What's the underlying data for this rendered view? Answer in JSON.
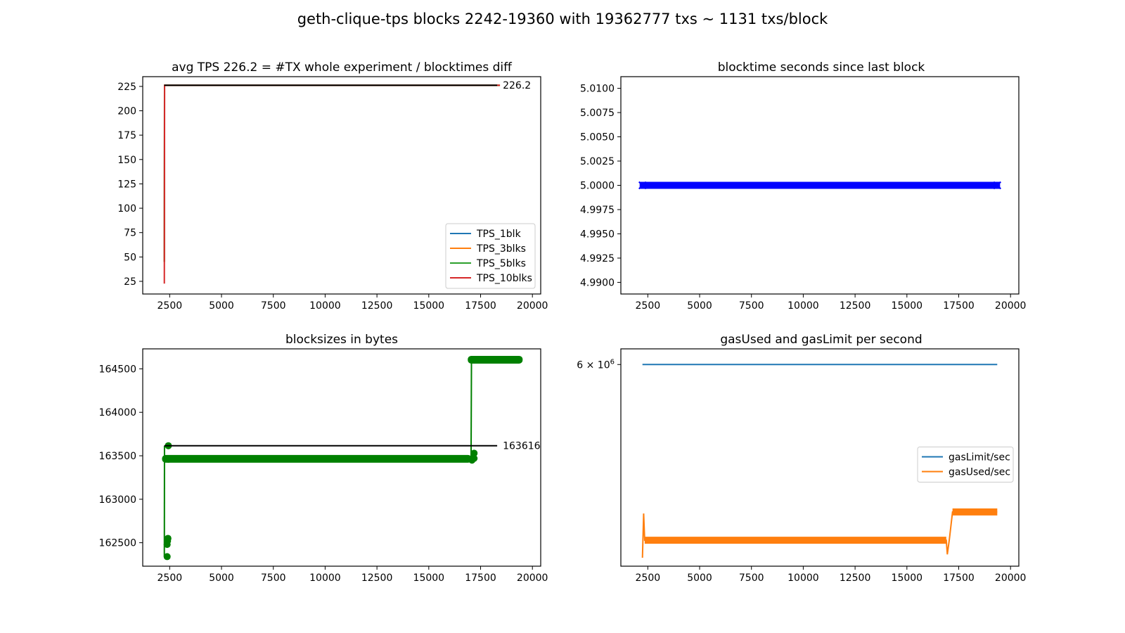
{
  "figure": {
    "title": "geth-clique-tps blocks 2242-19360 with 19362777 txs ~ 1131 txs/block"
  },
  "chart_data": [
    {
      "id": "tps",
      "type": "line",
      "title": "avg TPS 226.2 = #TX whole experiment / blocktimes diff",
      "xlim": [
        1200,
        20400
      ],
      "ylim": [
        12,
        235
      ],
      "xticks": [
        2500,
        5000,
        7500,
        10000,
        12500,
        15000,
        17500,
        20000
      ],
      "yticks": [
        25,
        50,
        75,
        100,
        125,
        150,
        175,
        200,
        225
      ],
      "ytick_labels": [
        "25",
        "50",
        "75",
        "100",
        "125",
        "150",
        "175",
        "200",
        "225"
      ],
      "legend": {
        "position": "lower-right"
      },
      "series": [
        {
          "name": "TPS_1blk",
          "color": "#1f77b4",
          "points": [
            [
              2242,
              45
            ],
            [
              2250,
              226.2
            ],
            [
              19360,
              226.2
            ]
          ]
        },
        {
          "name": "TPS_3blks",
          "color": "#ff7f0e",
          "points": [
            [
              2242,
              45
            ],
            [
              2250,
              226.2
            ],
            [
              19360,
              226.2
            ]
          ]
        },
        {
          "name": "TPS_5blks",
          "color": "#2ca02c",
          "points": [
            [
              2242,
              45
            ],
            [
              2250,
              226.2
            ],
            [
              19360,
              226.2
            ]
          ]
        },
        {
          "name": "TPS_10blks",
          "color": "#d62728",
          "points": [
            [
              2242,
              22.6
            ],
            [
              2255,
              226.2
            ],
            [
              19360,
              226.2
            ]
          ]
        }
      ],
      "hline": {
        "y": 226.2,
        "x_from": 2242,
        "x_to": 18300,
        "label": "226.2",
        "color": "#000000"
      }
    },
    {
      "id": "blocktime",
      "type": "scatter",
      "title": "blocktime seconds since last block",
      "xlim": [
        1200,
        20400
      ],
      "ylim": [
        4.9888,
        5.0112
      ],
      "xticks": [
        2500,
        5000,
        7500,
        10000,
        12500,
        15000,
        17500,
        20000
      ],
      "yticks": [
        4.99,
        4.9925,
        4.995,
        4.9975,
        5.0,
        5.0025,
        5.005,
        5.0075,
        5.01
      ],
      "ytick_labels": [
        "4.9900",
        "4.9925",
        "4.9950",
        "4.9975",
        "5.0000",
        "5.0025",
        "5.0050",
        "5.0075",
        "5.0100"
      ],
      "series": [
        {
          "name": "blocktime",
          "color": "#0000ff",
          "marker": "x",
          "x_from": 2242,
          "x_to": 19360,
          "y": 5.0
        }
      ]
    },
    {
      "id": "blocksize",
      "type": "line",
      "title": "blocksizes in bytes",
      "xlim": [
        1200,
        20400
      ],
      "ylim": [
        162230,
        164730
      ],
      "xticks": [
        2500,
        5000,
        7500,
        10000,
        12500,
        15000,
        17500,
        20000
      ],
      "yticks": [
        162500,
        163000,
        163500,
        164000,
        164500
      ],
      "ytick_labels": [
        "162500",
        "163000",
        "163500",
        "164000",
        "164500"
      ],
      "series": [
        {
          "name": "blocksize",
          "color": "#008000",
          "marker": "o",
          "segments": [
            {
              "x_from": 2300,
              "x_to": 16900,
              "y": 163465
            },
            {
              "x_from": 17050,
              "x_to": 19360,
              "y": 164605
            }
          ],
          "points": [
            [
              2242,
              162340
            ],
            [
              2242,
              162480
            ],
            [
              2260,
              162520
            ],
            [
              2280,
              162550
            ],
            [
              2300,
              163616
            ],
            [
              2300,
              163460
            ],
            [
              16950,
              163450
            ],
            [
              17050,
              163470
            ],
            [
              17050,
              163530
            ],
            [
              17060,
              164600
            ]
          ]
        }
      ],
      "hline": {
        "y": 163616,
        "x_from": 2242,
        "x_to": 18300,
        "label": "163616",
        "color": "#000000"
      }
    },
    {
      "id": "gas",
      "type": "line",
      "title": "gasUsed and gasLimit per second",
      "yscale": "log",
      "xlim": [
        1200,
        20400
      ],
      "ylim": [
        4650000,
        6120000
      ],
      "xticks": [
        2500,
        5000,
        7500,
        10000,
        12500,
        15000,
        17500,
        20000
      ],
      "yticks": [
        6000000
      ],
      "ytick_label": {
        "base": "6 × 10",
        "exp": "6"
      },
      "legend": {
        "position": "center-right"
      },
      "series": [
        {
          "name": "gasLimit/sec",
          "color": "#1f77b4",
          "points": [
            [
              2242,
              6000000
            ],
            [
              19360,
              6000000
            ]
          ]
        },
        {
          "name": "gasUsed/sec",
          "color": "#ff7f0e",
          "points": [
            [
              2242,
              4700000
            ],
            [
              2300,
              4970000
            ],
            [
              2350,
              4805000
            ],
            [
              16900,
              4805000
            ],
            [
              16950,
              4720000
            ],
            [
              17050,
              4810000
            ],
            [
              17200,
              4980000
            ],
            [
              19360,
              4980000
            ]
          ]
        }
      ]
    }
  ]
}
